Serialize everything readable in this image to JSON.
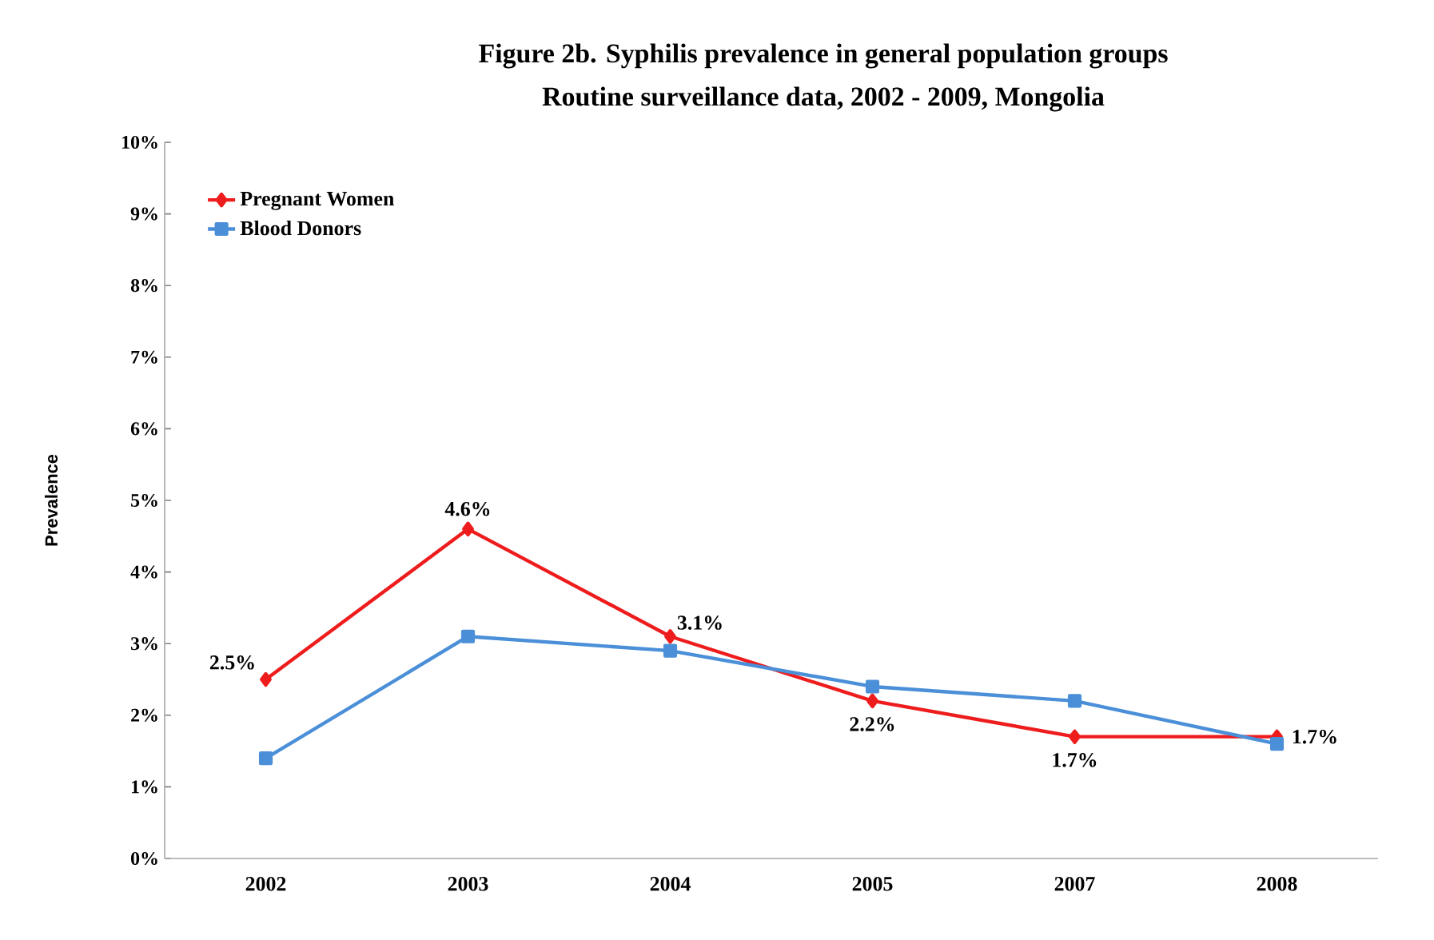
{
  "chart_data": {
    "type": "line",
    "title": "Figure 2b. Syphilis prevalence in general population groups",
    "subtitle": "Routine surveillance data, 2002 - 2009, Mongolia",
    "ylabel": "Prevalence",
    "categories": [
      "2002",
      "2003",
      "2004",
      "2005",
      "2007",
      "2008"
    ],
    "series": [
      {
        "name": "Pregnant Women",
        "color": "#ee1c1c",
        "marker": "diamond",
        "values": [
          2.5,
          4.6,
          3.1,
          2.2,
          1.7,
          1.7
        ],
        "value_labels": [
          "2.5%",
          "4.6%",
          "3.1%",
          "2.2%",
          "1.7%",
          "1.7%"
        ]
      },
      {
        "name": "Blood Donors",
        "color": "#4a8fd8",
        "marker": "square",
        "values": [
          1.4,
          3.1,
          2.9,
          2.4,
          2.2,
          1.6
        ]
      }
    ],
    "ylim": [
      0,
      10
    ],
    "yticks": [
      {
        "value": 0,
        "label": "0%"
      },
      {
        "value": 1,
        "label": "1%"
      },
      {
        "value": 2,
        "label": "2%"
      },
      {
        "value": 3,
        "label": "3%"
      },
      {
        "value": 4,
        "label": "4%"
      },
      {
        "value": 5,
        "label": "5%"
      },
      {
        "value": 6,
        "label": "6%"
      },
      {
        "value": 7,
        "label": "7%"
      },
      {
        "value": 8,
        "label": "8%"
      },
      {
        "value": 9,
        "label": "9%"
      },
      {
        "value": 10,
        "label": "10%"
      }
    ],
    "grid": false,
    "legend": "top left",
    "line_style": "solid"
  }
}
